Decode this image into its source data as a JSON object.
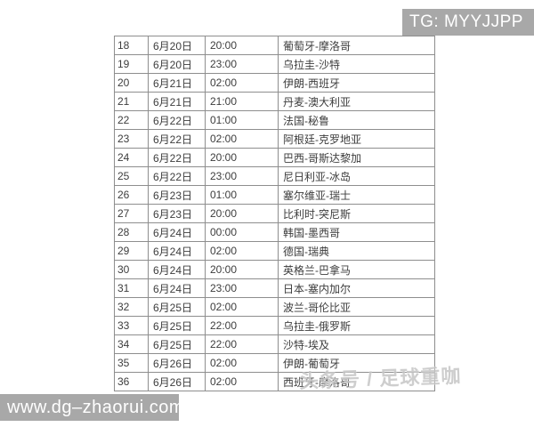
{
  "watermarks": {
    "telegram_tag": "TG: MYYJJPP",
    "website": "www.dg–zhaorui.com",
    "toutiao_account": "头条号 / 足球重咖"
  },
  "colors": {
    "watermark_box": "#a8a8a8",
    "watermark_text": "#ffffff",
    "table_border": "#8e8e8e",
    "table_text": "#3d3d3d",
    "toutiao_watermark": "#c6c6c6",
    "background": "#ffffff"
  },
  "table": {
    "rows": [
      [
        "18",
        "6月20日",
        "20:00",
        "葡萄牙-摩洛哥"
      ],
      [
        "19",
        "6月20日",
        "23:00",
        "乌拉圭-沙特"
      ],
      [
        "20",
        "6月21日",
        "02:00",
        "伊朗-西班牙"
      ],
      [
        "21",
        "6月21日",
        "21:00",
        "丹麦-澳大利亚"
      ],
      [
        "22",
        "6月22日",
        "01:00",
        "法国-秘鲁"
      ],
      [
        "23",
        "6月22日",
        "02:00",
        "阿根廷-克罗地亚"
      ],
      [
        "24",
        "6月22日",
        "20:00",
        "巴西-哥斯达黎加"
      ],
      [
        "25",
        "6月22日",
        "23:00",
        "尼日利亚-冰岛"
      ],
      [
        "26",
        "6月23日",
        "01:00",
        "塞尔维亚-瑞士"
      ],
      [
        "27",
        "6月23日",
        "20:00",
        "比利时-突尼斯"
      ],
      [
        "28",
        "6月24日",
        "00:00",
        "韩国-墨西哥"
      ],
      [
        "29",
        "6月24日",
        "02:00",
        "德国-瑞典"
      ],
      [
        "30",
        "6月24日",
        "20:00",
        "英格兰-巴拿马"
      ],
      [
        "31",
        "6月24日",
        "23:00",
        "日本-塞内加尔"
      ],
      [
        "32",
        "6月25日",
        "02:00",
        "波兰-哥伦比亚"
      ],
      [
        "33",
        "6月25日",
        "22:00",
        "乌拉圭-俄罗斯"
      ],
      [
        "34",
        "6月25日",
        "22:00",
        "沙特-埃及"
      ],
      [
        "35",
        "6月26日",
        "02:00",
        "伊朗-葡萄牙"
      ],
      [
        "36",
        "6月26日",
        "02:00",
        "西班牙-摩洛哥"
      ]
    ]
  }
}
